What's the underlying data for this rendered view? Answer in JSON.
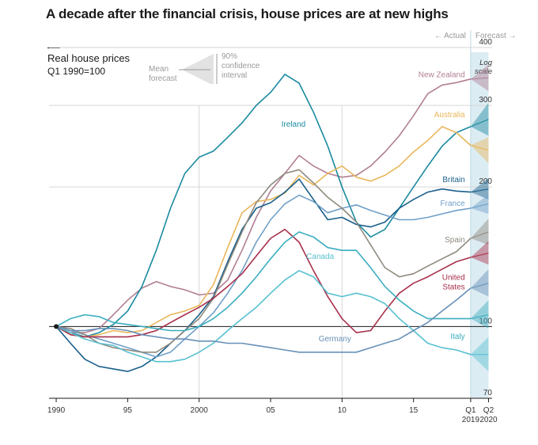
{
  "title": "A decade after the financial crisis, house prices are at new highs",
  "subtitle": {
    "line1": "Real house prices",
    "line2": "Q1 1990=100"
  },
  "key": {
    "mean_forecast": "Mean forecast",
    "confidence_interval": "90% confidence interval"
  },
  "header": {
    "actual": "← Actual",
    "forecast": "Forecast →"
  },
  "scale_note": "Log scale",
  "colors": {
    "forecast_band": "#dcecf3",
    "axis": "#1a1a1a",
    "grid": "#d6d6d6"
  },
  "chart_data": {
    "type": "line",
    "title": "A decade after the financial crisis, house prices are at new highs",
    "ylabel": "Real house prices, Q1 1990=100",
    "yscale": "log",
    "ylim": [
      70,
      400
    ],
    "xlim": [
      1989.5,
      2020.5
    ],
    "x_tick_labels": [
      {
        "x": 1990,
        "label": "1990"
      },
      {
        "x": 1995,
        "label": "95"
      },
      {
        "x": 2000,
        "label": "2000"
      },
      {
        "x": 2005,
        "label": "05"
      },
      {
        "x": 2010,
        "label": "10"
      },
      {
        "x": 2015,
        "label": "15"
      },
      {
        "x": 2019,
        "label": "Q1",
        "label2": "2019"
      },
      {
        "x": 2020.25,
        "label": "Q2",
        "label2": "2020"
      }
    ],
    "y_ticks": [
      70,
      100,
      200,
      300,
      400
    ],
    "forecast_start": 2019,
    "forecast_end": 2020.25,
    "series": [
      {
        "name": "New Zealand",
        "color": "#b17f94",
        "x": [
          1990,
          1991,
          1992,
          1993,
          1994,
          1995,
          1996,
          1997,
          1998,
          1999,
          2000,
          2001,
          2002,
          2003,
          2004,
          2005,
          2006,
          2007,
          2008,
          2009,
          2010,
          2011,
          2012,
          2013,
          2014,
          2015,
          2016,
          2017,
          2018,
          2019
        ],
        "values": [
          100,
          97,
          97,
          99,
          106,
          114,
          121,
          125,
          122,
          120,
          117,
          118,
          126,
          146,
          172,
          196,
          214,
          234,
          222,
          214,
          210,
          212,
          222,
          238,
          258,
          285,
          318,
          332,
          336,
          342
        ],
        "forecast": {
          "mean": 344,
          "low": 322,
          "high": 368
        }
      },
      {
        "name": "Ireland",
        "color": "#1a8aa0",
        "x": [
          1990,
          1991,
          1992,
          1993,
          1994,
          1995,
          1996,
          1997,
          1998,
          1999,
          2000,
          2001,
          2002,
          2003,
          2004,
          2005,
          2006,
          2007,
          2008,
          2009,
          2010,
          2011,
          2012,
          2013,
          2014,
          2015,
          2016,
          2017,
          2018,
          2019
        ],
        "values": [
          100,
          97,
          95,
          97,
          101,
          108,
          122,
          146,
          180,
          214,
          232,
          239,
          256,
          275,
          300,
          320,
          350,
          335,
          290,
          245,
          200,
          168,
          156,
          162,
          180,
          200,
          222,
          245,
          262,
          270
        ],
        "forecast": {
          "mean": 280,
          "low": 258,
          "high": 304
        }
      },
      {
        "name": "Australia",
        "color": "#e8b75a",
        "x": [
          1990,
          1991,
          1992,
          1993,
          1994,
          1995,
          1996,
          1997,
          1998,
          1999,
          2000,
          2001,
          2002,
          2003,
          2004,
          2005,
          2006,
          2007,
          2008,
          2009,
          2010,
          2011,
          2012,
          2013,
          2014,
          2015,
          2016,
          2017,
          2018,
          2019
        ],
        "values": [
          100,
          96,
          95,
          96,
          98,
          97,
          98,
          102,
          106,
          108,
          111,
          123,
          148,
          176,
          186,
          188,
          194,
          212,
          202,
          214,
          222,
          210,
          206,
          212,
          222,
          238,
          252,
          270,
          262,
          246
        ],
        "forecast": {
          "mean": 240,
          "low": 225,
          "high": 256
        }
      },
      {
        "name": "Britain",
        "color": "#1a5f8a",
        "x": [
          1990,
          1991,
          1992,
          1993,
          1994,
          1995,
          1996,
          1997,
          1998,
          1999,
          2000,
          2001,
          2002,
          2003,
          2004,
          2005,
          2006,
          2007,
          2008,
          2009,
          2010,
          2011,
          2012,
          2013,
          2014,
          2015,
          2016,
          2017,
          2018,
          2019
        ],
        "values": [
          100,
          92,
          85,
          82,
          81,
          80,
          82,
          86,
          92,
          98,
          106,
          116,
          138,
          162,
          180,
          185,
          195,
          208,
          188,
          170,
          172,
          166,
          164,
          168,
          180,
          188,
          195,
          198,
          196,
          195
        ],
        "forecast": {
          "mean": 198,
          "low": 188,
          "high": 209
        }
      },
      {
        "name": "France",
        "color": "#6f9fc8",
        "x": [
          1990,
          1991,
          1992,
          1993,
          1994,
          1995,
          1996,
          1997,
          1998,
          1999,
          2000,
          2001,
          2002,
          2003,
          2004,
          2005,
          2006,
          2007,
          2008,
          2009,
          2010,
          2011,
          2012,
          2013,
          2014,
          2015,
          2016,
          2017,
          2018,
          2019
        ],
        "values": [
          100,
          98,
          96,
          94,
          92,
          90,
          88,
          86,
          88,
          94,
          100,
          107,
          118,
          132,
          152,
          170,
          184,
          192,
          186,
          176,
          180,
          183,
          178,
          174,
          170,
          170,
          172,
          175,
          178,
          180
        ],
        "forecast": {
          "mean": 184,
          "low": 175,
          "high": 193
        }
      },
      {
        "name": "Spain",
        "color": "#8f8a7e",
        "x": [
          1990,
          1991,
          1992,
          1993,
          1994,
          1995,
          1996,
          1997,
          1998,
          1999,
          2000,
          2001,
          2002,
          2003,
          2004,
          2005,
          2006,
          2007,
          2008,
          2009,
          2010,
          2011,
          2012,
          2013,
          2014,
          2015,
          2016,
          2017,
          2018,
          2019
        ],
        "values": [
          100,
          99,
          96,
          92,
          90,
          89,
          88,
          88,
          92,
          98,
          104,
          115,
          136,
          160,
          185,
          202,
          214,
          218,
          204,
          190,
          180,
          168,
          150,
          134,
          128,
          130,
          135,
          140,
          145,
          155
        ],
        "forecast": {
          "mean": 160,
          "low": 150,
          "high": 171
        }
      },
      {
        "name": "United States",
        "color": "#a8304b",
        "x": [
          1990,
          1991,
          1992,
          1993,
          1994,
          1995,
          1996,
          1997,
          1998,
          1999,
          2000,
          2001,
          2002,
          2003,
          2004,
          2005,
          2006,
          2007,
          2008,
          2009,
          2010,
          2011,
          2012,
          2013,
          2014,
          2015,
          2016,
          2017,
          2018,
          2019
        ],
        "values": [
          100,
          96,
          95,
          95,
          95,
          95,
          96,
          98,
          102,
          106,
          110,
          115,
          122,
          130,
          142,
          155,
          162,
          152,
          132,
          116,
          104,
          97,
          98,
          108,
          118,
          124,
          128,
          133,
          138,
          141
        ],
        "forecast": {
          "mean": 144,
          "low": 136,
          "high": 153
        }
      },
      {
        "name": "Canada",
        "color": "#58c0d0",
        "x": [
          1990,
          1991,
          1992,
          1993,
          1994,
          1995,
          1996,
          1997,
          1998,
          1999,
          2000,
          2001,
          2002,
          2003,
          2004,
          2005,
          2006,
          2007,
          2008,
          2009,
          2010,
          2011,
          2012,
          2013,
          2014,
          2015,
          2016,
          2017,
          2018,
          2019
        ],
        "values": [
          100,
          97,
          94,
          92,
          91,
          88,
          86,
          84,
          84,
          85,
          88,
          92,
          98,
          104,
          110,
          118,
          126,
          132,
          128,
          118,
          116,
          118,
          116,
          112,
          104,
          98,
          92,
          90,
          89,
          87
        ],
        "forecast": {
          "mean": 87,
          "low": 80,
          "high": 95
        }
      },
      {
        "name": "Italy",
        "color": "#3aaebf",
        "x": [
          1990,
          1991,
          1992,
          1993,
          1994,
          1995,
          1996,
          1997,
          1998,
          1999,
          2000,
          2001,
          2002,
          2003,
          2004,
          2005,
          2006,
          2007,
          2008,
          2009,
          2010,
          2011,
          2012,
          2013,
          2014,
          2015,
          2016,
          2017,
          2018,
          2019
        ],
        "values": [
          100,
          104,
          106,
          105,
          102,
          101,
          100,
          99,
          98,
          98,
          100,
          104,
          110,
          118,
          128,
          140,
          152,
          160,
          156,
          148,
          146,
          146,
          134,
          122,
          114,
          108,
          104,
          104,
          104,
          104
        ],
        "forecast": {
          "mean": 106,
          "low": 99,
          "high": 114
        }
      },
      {
        "name": "Germany",
        "color": "#6791b8",
        "x": [
          1990,
          1991,
          1992,
          1993,
          1994,
          1995,
          1996,
          1997,
          1998,
          1999,
          2000,
          2001,
          2002,
          2003,
          2004,
          2005,
          2006,
          2007,
          2008,
          2009,
          2010,
          2011,
          2012,
          2013,
          2014,
          2015,
          2016,
          2017,
          2018,
          2019
        ],
        "values": [
          100,
          98,
          98,
          99,
          99,
          98,
          96,
          95,
          94,
          94,
          93,
          93,
          92,
          92,
          91,
          90,
          89,
          88,
          88,
          88,
          88,
          88,
          90,
          92,
          94,
          98,
          102,
          108,
          114,
          121
        ],
        "forecast": {
          "mean": 124,
          "low": 116,
          "high": 133
        }
      }
    ],
    "series_labels": {
      "New Zealand": "New Zealand",
      "Ireland": "Ireland",
      "Australia": "Australia",
      "Britain": "Britain",
      "France": "France",
      "Spain": "Spain",
      "United States": "United States",
      "Canada": "Canada",
      "Italy": "Italy",
      "Germany": "Germany"
    }
  }
}
